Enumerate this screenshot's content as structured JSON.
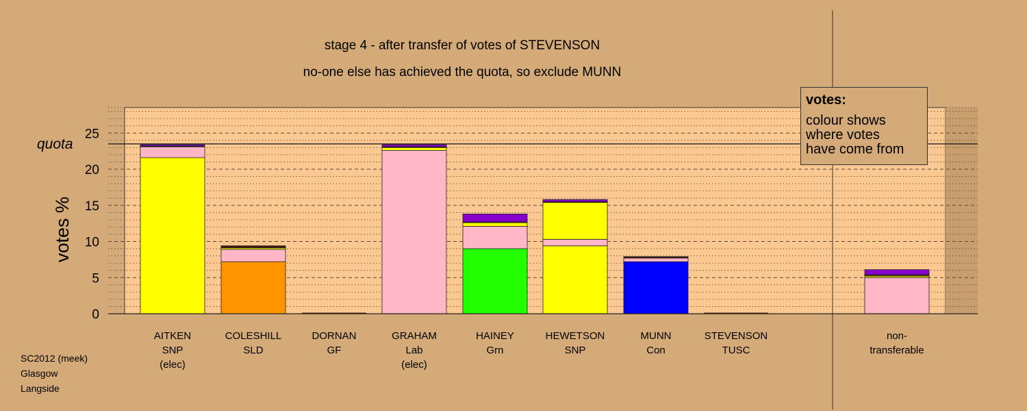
{
  "chart_data": {
    "type": "bar",
    "stacked": true,
    "title": "stage 4 - after transfer of votes of STEVENSON",
    "subtitle": "no-one else has achieved the quota, so exclude MUNN",
    "ylabel": "votes %",
    "ylim": [
      0,
      28.6
    ],
    "yticks": [
      0,
      5,
      10,
      15,
      20,
      25
    ],
    "quota": 23.5,
    "quota_label": "quota",
    "grid": true,
    "categories": [
      {
        "lines": [
          "AITKEN",
          "SNP",
          "(elec)"
        ]
      },
      {
        "lines": [
          "COLESHILL",
          "SLD"
        ]
      },
      {
        "lines": [
          "DORNAN",
          "GF"
        ]
      },
      {
        "lines": [
          "GRAHAM",
          "Lab",
          "(elec)"
        ]
      },
      {
        "lines": [
          "HAINEY",
          "Grn"
        ]
      },
      {
        "lines": [
          "HEWETSON",
          "SNP"
        ]
      },
      {
        "lines": [
          "MUNN",
          "Con"
        ]
      },
      {
        "lines": [
          "STEVENSON",
          "TUSC"
        ]
      },
      {
        "lines": [
          "non-",
          "transferable"
        ]
      }
    ],
    "colors": {
      "background": "#d4aa78",
      "plot_area": "#fac890",
      "SNP": "#ffff00",
      "Lab": "#ffb6c6",
      "SLD": "#ff9400",
      "Grn": "#22ff00",
      "Con": "#0000ff",
      "TUSC": "#8800cc",
      "GF": "#401808"
    },
    "stacks": [
      [
        {
          "party": "SNP",
          "value": 21.6
        },
        {
          "party": "Lab",
          "value": 1.5
        },
        {
          "party": "SLD",
          "value": 0.05
        },
        {
          "party": "GF",
          "value": 0.05
        },
        {
          "party": "TUSC",
          "value": 0.2
        }
      ],
      [
        {
          "party": "SLD",
          "value": 7.2
        },
        {
          "party": "Lab",
          "value": 1.7
        },
        {
          "party": "SNP",
          "value": 0.2
        },
        {
          "party": "GF",
          "value": 0.3
        }
      ],
      [
        {
          "party": "GF",
          "value": 0.0
        }
      ],
      [
        {
          "party": "Lab",
          "value": 22.6
        },
        {
          "party": "SNP",
          "value": 0.4
        },
        {
          "party": "GF",
          "value": 0.1
        },
        {
          "party": "TUSC",
          "value": 0.3
        }
      ],
      [
        {
          "party": "Grn",
          "value": 9.0
        },
        {
          "party": "Lab",
          "value": 3.1
        },
        {
          "party": "SNP",
          "value": 0.5
        },
        {
          "party": "GF",
          "value": 0.1
        },
        {
          "party": "TUSC",
          "value": 1.1
        }
      ],
      [
        {
          "party": "SNP",
          "value": 9.4
        },
        {
          "party": "Lab",
          "value": 0.9
        },
        {
          "party": "SNP",
          "value": 5.1
        },
        {
          "party": "GF",
          "value": 0.1
        },
        {
          "party": "TUSC",
          "value": 0.3
        }
      ],
      [
        {
          "party": "Con",
          "value": 7.2
        },
        {
          "party": "Lab",
          "value": 0.5
        },
        {
          "party": "GF",
          "value": 0.2
        }
      ],
      [
        {
          "party": "TUSC",
          "value": 0.0
        }
      ],
      [
        {
          "party": "Lab",
          "value": 5.0
        },
        {
          "party": "SNP",
          "value": 0.2
        },
        {
          "party": "SLD",
          "value": 0.1
        },
        {
          "party": "GF",
          "value": 0.1
        },
        {
          "party": "TUSC",
          "value": 0.7
        }
      ]
    ]
  },
  "legend": {
    "title": "votes:",
    "lines": [
      "colour shows",
      "where votes",
      "have come from"
    ]
  },
  "footer": {
    "lines": [
      "SC2012 (meek)",
      "Glasgow",
      "Langside"
    ]
  }
}
